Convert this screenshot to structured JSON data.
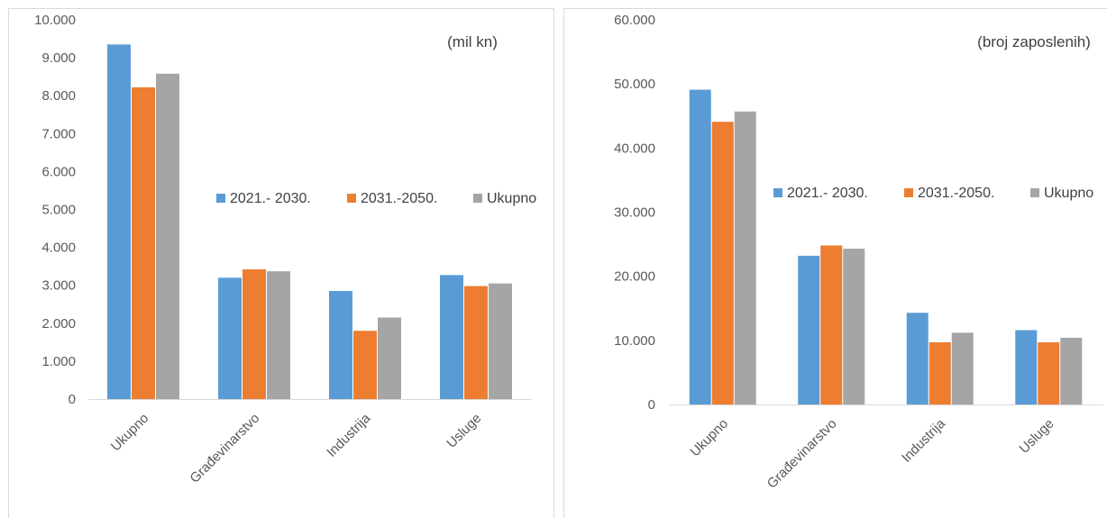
{
  "chart_data": [
    {
      "type": "bar",
      "title": "",
      "annotation": "(mil kn)",
      "xlabel": "",
      "ylabel": "",
      "categories": [
        "Ukupno",
        "Građevinarstvo",
        "Industrija",
        "Usluge"
      ],
      "series": [
        {
          "name": "2021.- 2030.",
          "color": "#5b9bd5",
          "values": [
            9350,
            3200,
            2850,
            3270
          ]
        },
        {
          "name": "2031.-2050.",
          "color": "#ed7d31",
          "values": [
            8220,
            3420,
            1800,
            2980
          ]
        },
        {
          "name": "Ukupno",
          "color": "#a5a5a5",
          "values": [
            8580,
            3370,
            2150,
            3050
          ]
        }
      ],
      "ylim": [
        0,
        10000
      ],
      "yticks": [
        0,
        1000,
        2000,
        3000,
        4000,
        5000,
        6000,
        7000,
        8000,
        9000,
        10000
      ],
      "ytick_labels": [
        "0",
        "1.000",
        "2.000",
        "3.000",
        "4.000",
        "5.000",
        "6.000",
        "7.000",
        "8.000",
        "9.000",
        "10.000"
      ],
      "grid": false,
      "legend_position": "right"
    },
    {
      "type": "bar",
      "title": "",
      "annotation": "(broj zaposlenih)",
      "xlabel": "",
      "ylabel": "",
      "categories": [
        "Ukupno",
        "Građevinarstvo",
        "Industrija",
        "Usluge"
      ],
      "series": [
        {
          "name": "2021.- 2030.",
          "color": "#5b9bd5",
          "values": [
            49100,
            23200,
            14300,
            11600
          ]
        },
        {
          "name": "2031.-2050.",
          "color": "#ed7d31",
          "values": [
            44100,
            24800,
            9700,
            9700
          ]
        },
        {
          "name": "Ukupno",
          "color": "#a5a5a5",
          "values": [
            45700,
            24300,
            11200,
            10400
          ]
        }
      ],
      "ylim": [
        0,
        60000
      ],
      "yticks": [
        0,
        10000,
        20000,
        30000,
        40000,
        50000,
        60000
      ],
      "ytick_labels": [
        "0",
        "10.000",
        "20.000",
        "30.000",
        "40.000",
        "50.000",
        "60.000"
      ],
      "grid": false,
      "legend_position": "right"
    }
  ]
}
